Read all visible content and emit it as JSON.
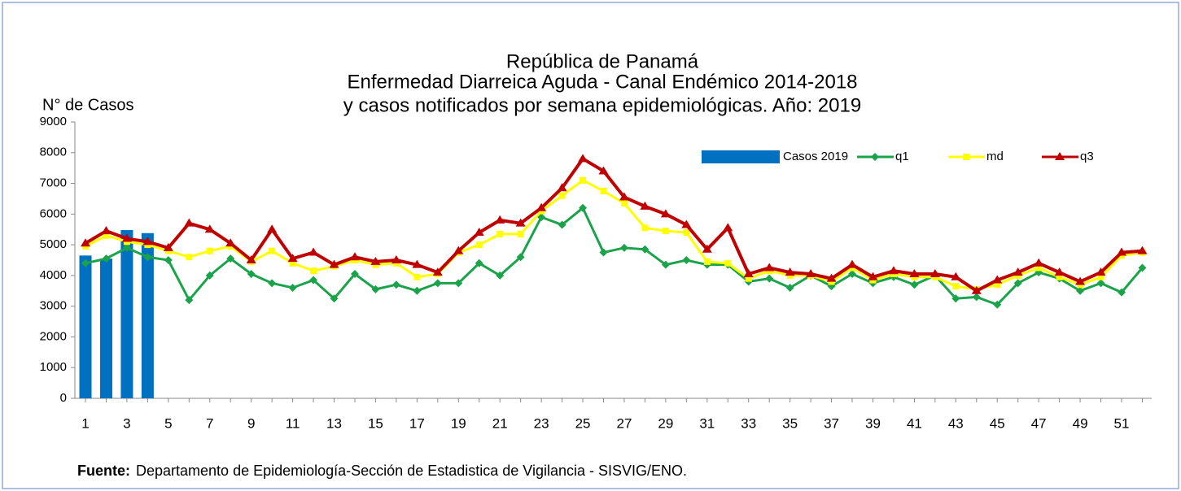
{
  "chart_data": {
    "type": "combo",
    "title": [
      "República de Panamá",
      "Enfermedad Diarreica Aguda - Canal Endémico 2014-2018",
      "y casos notificados por semana epidemiológicas.  Año: 2019"
    ],
    "y_label": "N° de Casos",
    "footer": {
      "label": "Fuente:",
      "text": "Departamento de Epidemiología-Sección de Estadistica de Vigilancia - SISVIG/ENO."
    },
    "categories": [
      "1",
      null,
      "3",
      null,
      "5",
      null,
      "7",
      null,
      "9",
      null,
      "11",
      null,
      "13",
      null,
      "15",
      null,
      "17",
      null,
      "19",
      null,
      "21",
      null,
      "23",
      null,
      "25",
      null,
      "27",
      null,
      "29",
      null,
      "31",
      null,
      "33",
      null,
      "35",
      null,
      "37",
      null,
      "39",
      null,
      "41",
      null,
      "43",
      null,
      "45",
      null,
      "47",
      null,
      "49",
      null,
      "51",
      null
    ],
    "ylim": [
      0,
      9000
    ],
    "yticks": [
      0,
      1000,
      2000,
      3000,
      4000,
      5000,
      6000,
      7000,
      8000,
      9000
    ],
    "legend": "top-right",
    "series": [
      {
        "name": "Casos 2019",
        "type": "bar",
        "color": "#0070c0",
        "values": [
          4650,
          4550,
          5480,
          5380,
          null,
          null,
          null,
          null,
          null,
          null,
          null,
          null,
          null,
          null,
          null,
          null,
          null,
          null,
          null,
          null,
          null,
          null,
          null,
          null,
          null,
          null,
          null,
          null,
          null,
          null,
          null,
          null,
          null,
          null,
          null,
          null,
          null,
          null,
          null,
          null,
          null,
          null,
          null,
          null,
          null,
          null,
          null,
          null,
          null,
          null,
          null,
          null
        ]
      },
      {
        "name": "q1",
        "type": "line",
        "marker": "diamond",
        "color": "#1aa34a",
        "values": [
          4400,
          4550,
          4900,
          4600,
          4500,
          3200,
          4000,
          4550,
          4050,
          3750,
          3600,
          3850,
          3250,
          4050,
          3550,
          3700,
          3500,
          3750,
          3750,
          4400,
          4000,
          4600,
          5900,
          5650,
          6200,
          4750,
          4900,
          4850,
          4350,
          4500,
          4350,
          4350,
          3800,
          3900,
          3600,
          4000,
          3650,
          4050,
          3750,
          3950,
          3700,
          4000,
          3250,
          3300,
          3050,
          3750,
          4100,
          3900,
          3500,
          3750,
          3450,
          4250
        ]
      },
      {
        "name": "md",
        "type": "line",
        "marker": "square",
        "color": "#ffff00",
        "values": [
          4950,
          5300,
          5100,
          5000,
          4800,
          4600,
          4800,
          4950,
          4450,
          4800,
          4400,
          4150,
          4300,
          4500,
          4350,
          4400,
          3950,
          4050,
          4750,
          5000,
          5350,
          5350,
          6100,
          6600,
          7100,
          6750,
          6350,
          5550,
          5450,
          5400,
          4450,
          4400,
          3900,
          4150,
          4000,
          4000,
          3800,
          4250,
          3850,
          4050,
          3950,
          3950,
          3650,
          3550,
          3700,
          4000,
          4250,
          3950,
          3700,
          3950,
          4650,
          4750
        ]
      },
      {
        "name": "q3",
        "type": "line",
        "marker": "triangle",
        "color": "#c00000",
        "values": [
          5050,
          5450,
          5200,
          5100,
          4900,
          5700,
          5500,
          5050,
          4500,
          5500,
          4550,
          4750,
          4350,
          4600,
          4450,
          4500,
          4350,
          4100,
          4800,
          5400,
          5800,
          5700,
          6200,
          6850,
          7800,
          7400,
          6550,
          6250,
          6000,
          5650,
          4850,
          5550,
          4050,
          4250,
          4100,
          4050,
          3900,
          4350,
          3950,
          4150,
          4050,
          4050,
          3950,
          3500,
          3850,
          4100,
          4400,
          4100,
          3800,
          4100,
          4750,
          4800
        ]
      }
    ]
  }
}
